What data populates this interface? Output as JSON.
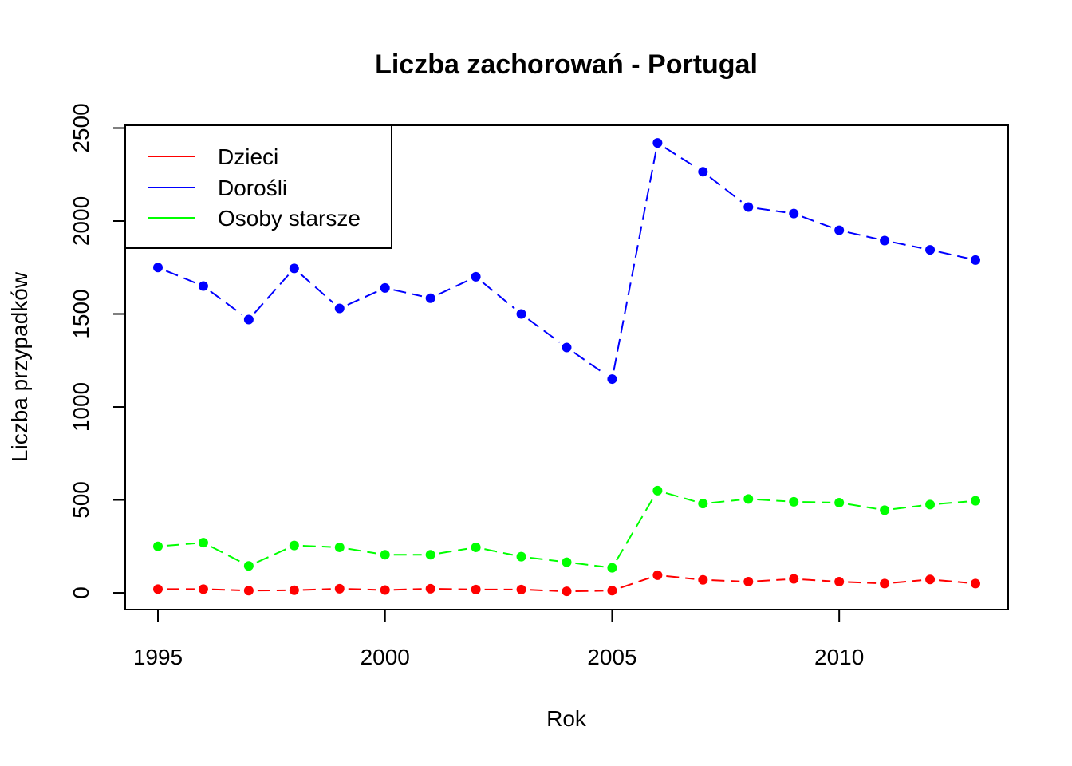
{
  "chart_data": {
    "type": "line",
    "title": "Liczba zachorowań -  Portugal",
    "xlabel": "Rok",
    "ylabel": "Liczba przypadków",
    "x": [
      1995,
      1996,
      1997,
      1998,
      1999,
      2000,
      2001,
      2002,
      2003,
      2004,
      2005,
      2006,
      2007,
      2008,
      2009,
      2010,
      2011,
      2012,
      2013
    ],
    "xlim": [
      1994.28,
      2013.72
    ],
    "ylim": [
      -90,
      2515
    ],
    "x_ticks": [
      "1995",
      "2000",
      "2005",
      "2010"
    ],
    "y_ticks": [
      "0",
      "500",
      "1000",
      "1500",
      "2000",
      "2500"
    ],
    "grid": false,
    "legend_position": "top-left",
    "series": [
      {
        "name": "Dzieci",
        "color": "#ff0000",
        "values": [
          20,
          20,
          12,
          14,
          22,
          15,
          22,
          18,
          18,
          8,
          12,
          95,
          70,
          60,
          75,
          60,
          50,
          72,
          50
        ]
      },
      {
        "name": "Dorośli",
        "color": "#0000ff",
        "values": [
          1750,
          1650,
          1470,
          1745,
          1530,
          1640,
          1585,
          1700,
          1500,
          1320,
          1150,
          2420,
          2265,
          2075,
          2040,
          1950,
          1895,
          1845,
          1790
        ]
      },
      {
        "name": "Osoby starsze",
        "color": "#00ff00",
        "values": [
          250,
          270,
          145,
          255,
          245,
          205,
          205,
          245,
          195,
          165,
          135,
          550,
          480,
          505,
          490,
          485,
          445,
          475,
          495
        ]
      }
    ]
  }
}
